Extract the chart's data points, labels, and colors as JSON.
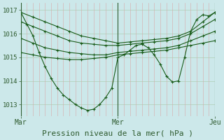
{
  "background_color": "#cce8ea",
  "plot_bg_color": "#cce8ea",
  "line_color": "#1a5c1a",
  "ylabel_ticks": [
    1013,
    1014,
    1015,
    1016,
    1017
  ],
  "xlabel": "Pression niveau de la mer( hPa )",
  "xtick_labels": [
    "Mar",
    "Mer",
    "Jeu"
  ],
  "xtick_positions": [
    0,
    48,
    96
  ],
  "figsize": [
    3.2,
    2.0
  ],
  "dpi": 100,
  "ylim": [
    1012.5,
    1017.3
  ],
  "xlim": [
    0,
    96
  ],
  "series": [
    {
      "x": [
        0,
        6,
        12,
        18,
        24,
        30,
        36,
        42,
        48,
        54,
        60,
        66,
        72,
        78,
        84,
        90,
        96
      ],
      "y": [
        1016.9,
        1016.7,
        1016.5,
        1016.3,
        1016.1,
        1015.9,
        1015.8,
        1015.7,
        1015.6,
        1015.65,
        1015.7,
        1015.75,
        1015.8,
        1015.9,
        1016.1,
        1016.5,
        1016.9
      ]
    },
    {
      "x": [
        0,
        6,
        12,
        18,
        24,
        30,
        36,
        42,
        48,
        54,
        60,
        66,
        72,
        78,
        84,
        90,
        96
      ],
      "y": [
        1016.5,
        1016.3,
        1016.1,
        1015.9,
        1015.7,
        1015.6,
        1015.55,
        1015.5,
        1015.5,
        1015.55,
        1015.6,
        1015.65,
        1015.7,
        1015.8,
        1016.0,
        1016.3,
        1016.6
      ]
    },
    {
      "x": [
        0,
        6,
        12,
        18,
        24,
        30,
        36,
        42,
        48,
        54,
        60,
        66,
        72,
        78,
        84,
        90,
        96
      ],
      "y": [
        1015.8,
        1015.6,
        1015.4,
        1015.3,
        1015.2,
        1015.15,
        1015.1,
        1015.1,
        1015.2,
        1015.25,
        1015.3,
        1015.35,
        1015.4,
        1015.5,
        1015.7,
        1015.9,
        1016.1
      ]
    },
    {
      "x": [
        0,
        6,
        12,
        18,
        24,
        30,
        36,
        42,
        48,
        54,
        60,
        66,
        72,
        78,
        84,
        90,
        96
      ],
      "y": [
        1015.2,
        1015.1,
        1015.0,
        1014.95,
        1014.9,
        1014.9,
        1014.95,
        1015.0,
        1015.1,
        1015.15,
        1015.2,
        1015.25,
        1015.3,
        1015.4,
        1015.5,
        1015.6,
        1015.7
      ]
    },
    {
      "x": [
        0,
        3,
        6,
        9,
        12,
        15,
        18,
        21,
        24,
        27,
        30,
        33,
        36,
        39,
        42,
        45,
        48,
        51,
        54,
        57,
        60,
        63,
        66,
        69,
        72,
        75,
        78,
        81,
        84,
        87,
        90,
        93,
        96
      ],
      "y": [
        1016.9,
        1016.4,
        1015.9,
        1015.2,
        1014.6,
        1014.1,
        1013.7,
        1013.4,
        1013.2,
        1013.0,
        1012.85,
        1012.75,
        1012.8,
        1013.0,
        1013.3,
        1013.7,
        1015.0,
        1015.1,
        1015.3,
        1015.5,
        1015.55,
        1015.4,
        1015.1,
        1014.7,
        1014.2,
        1013.95,
        1014.0,
        1015.0,
        1016.1,
        1016.6,
        1016.8,
        1016.75,
        1016.9
      ]
    }
  ]
}
